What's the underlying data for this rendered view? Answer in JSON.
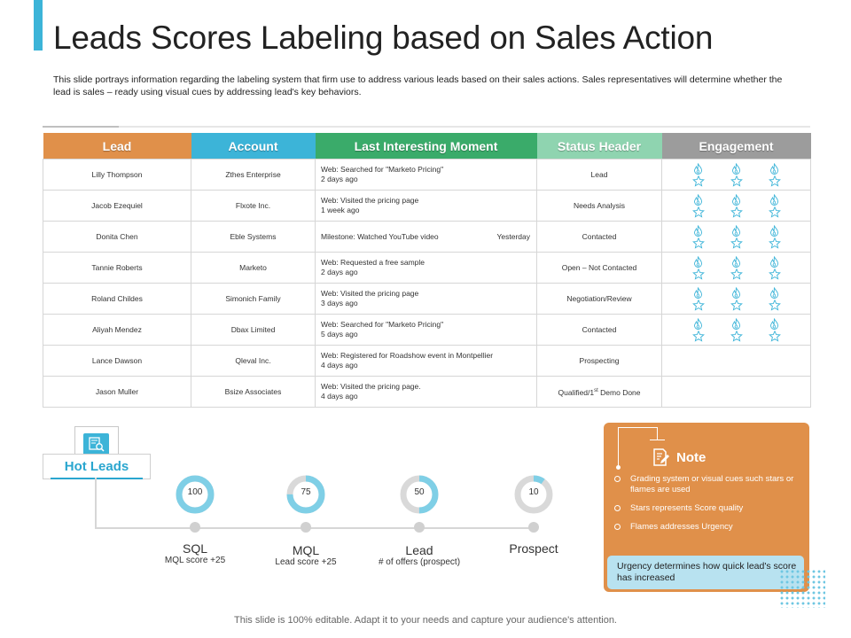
{
  "slide": {
    "title": "Leads Scores Labeling based on Sales Action",
    "description": "This slide portrays information regarding the labeling system that firm use to address various leads based on their sales actions. Sales representatives will determine whether the lead is sales – ready using visual cues by addressing lead's key behaviors.",
    "footer": "This slide is 100% editable. Adapt it to your needs and capture your audience's attention."
  },
  "table": {
    "headers": [
      {
        "label": "Lead",
        "color": "#e0904a"
      },
      {
        "label": "Account",
        "color": "#3cb4d8"
      },
      {
        "label": "Last Interesting Moment",
        "color": "#3aab6a"
      },
      {
        "label": "Status Header",
        "color": "#8fd4b0"
      },
      {
        "label": "Engagement",
        "color": "#9c9c9c"
      }
    ],
    "rows": [
      {
        "lead": "Lilly Thompson",
        "account": "Zthes Enterprise",
        "moment": "Web: Searched  for \"Marketo Pricing\"",
        "moment_time": "2 days ago",
        "moment_right": "",
        "status": "Lead",
        "engagement_units": 3
      },
      {
        "lead": "Jacob Ezequiel",
        "account": "Flxote Inc.",
        "moment": "Web: Visited the pricing page",
        "moment_time": "1 week ago",
        "moment_right": "",
        "status": "Needs Analysis",
        "engagement_units": 3
      },
      {
        "lead": "Donita Chen",
        "account": "Eble Systems",
        "moment": "Milestone: Watched YouTube video",
        "moment_time": "",
        "moment_right": "Yesterday",
        "status": "Contacted",
        "engagement_units": 3
      },
      {
        "lead": "Tannie Roberts",
        "account": "Marketo",
        "moment": "Web: Requested a free sample",
        "moment_time": "2 days ago",
        "moment_right": "",
        "status": "Open – Not Contacted",
        "engagement_units": 3
      },
      {
        "lead": "Roland Childes",
        "account": "Simonich Family",
        "moment": "Web: Visited the pricing page",
        "moment_time": "3 days ago",
        "moment_right": "",
        "status": "Negotiation/Review",
        "engagement_units": 3
      },
      {
        "lead": "Aliyah Mendez",
        "account": "Dbax Limited",
        "moment": "Web: Searched  for \"Marketo Pricing\"",
        "moment_time": "5 days ago",
        "moment_right": "",
        "status": "Contacted",
        "engagement_units": 3
      },
      {
        "lead": "Lance Dawson",
        "account": "Qleval Inc.",
        "moment": "Web: Registered for Roadshow event in Montpellier",
        "moment_time": "4 days ago",
        "moment_right": "",
        "status": "Prospecting",
        "engagement_units": 0
      },
      {
        "lead": "Jason Muller",
        "account": "Bsize Associates",
        "moment": "Web: Visited the pricing page.",
        "moment_time": "4 days ago",
        "moment_right": "",
        "status": "Qualified/1st Demo Done",
        "engagement_units": 0
      }
    ],
    "engagement_icons": [
      "flame-icon",
      "star-icon"
    ],
    "engagement_color": "#3cb4d8"
  },
  "hot_leads": {
    "label": "Hot Leads",
    "icon": "document-search-icon",
    "stages": [
      {
        "value": "100",
        "score": 100,
        "name": "SQL",
        "sub": "MQL score +25"
      },
      {
        "value": "75",
        "score": 75,
        "name": "MQL",
        "sub": "Lead score +25"
      },
      {
        "value": "50",
        "score": 50,
        "name": "Lead",
        "sub": "# of offers (prospect)"
      },
      {
        "value": "10",
        "score": 10,
        "name": "Prospect",
        "sub": ""
      }
    ],
    "donut_fill_color": "#7fcfe6",
    "donut_track_color": "#d9d9d9"
  },
  "note": {
    "title": "Note",
    "icon": "note-edit-icon",
    "items": [
      "Grading system or visual cues such stars or flames are used",
      "Stars represents Score quality",
      "Flames addresses Urgency"
    ],
    "urgency_text": "Urgency determines how quick lead's score has increased",
    "color": "#e0904a"
  }
}
